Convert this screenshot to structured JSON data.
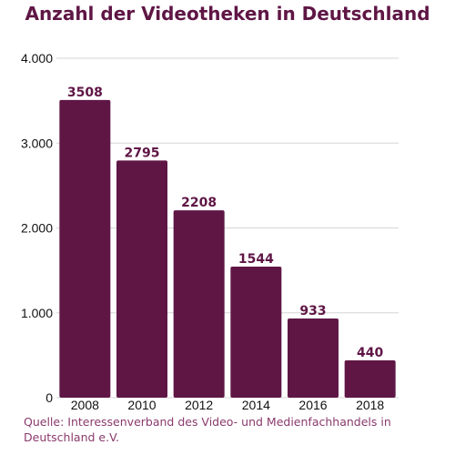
{
  "chart_data": {
    "type": "bar",
    "title": "Anzahl der Videotheken in Deutschland",
    "categories": [
      "2008",
      "2010",
      "2012",
      "2014",
      "2016",
      "2018"
    ],
    "values": [
      3508,
      2795,
      2208,
      1544,
      933,
      440
    ],
    "data_labels": [
      "3508",
      "2795",
      "2208",
      "1544",
      "933",
      "440"
    ],
    "xlabel": "",
    "ylabel": "",
    "ylim": [
      0,
      4000
    ],
    "yticks": [
      0,
      1000,
      2000,
      3000,
      4000
    ],
    "ytick_labels": [
      "0",
      "1.000",
      "2.000",
      "3.000",
      "4.000"
    ],
    "grid": "horizontal",
    "legend": "none"
  },
  "source": "Quelle: Interessenverband des Video- und Medienfachhandels in Deutschland e.V.",
  "colors": {
    "bar": "#5f1645",
    "title": "#5f1645",
    "data_label": "#5f1645",
    "source": "#8a3a6c",
    "grid": "#d6d6d6",
    "axis_text": "#111111"
  }
}
